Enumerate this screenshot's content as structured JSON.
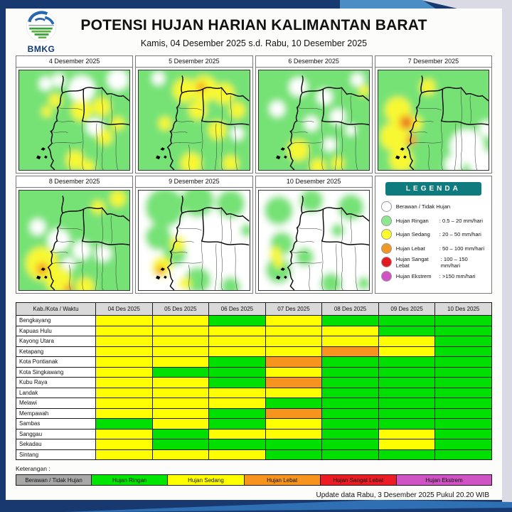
{
  "header": {
    "logo": "BMKG",
    "title": "POTENSI HUJAN HARIAN KALIMANTAN BARAT",
    "subtitle": "Kamis, 04 Desember 2025 s.d. Rabu, 10 Desember 2025"
  },
  "map_panels": [
    {
      "title": "4 Desember 2025"
    },
    {
      "title": "5 Desember 2025"
    },
    {
      "title": "6 Desember 2025"
    },
    {
      "title": "7 Desember 2025"
    },
    {
      "title": "8 Desember 2025"
    },
    {
      "title": "9 Desember 2025"
    },
    {
      "title": "10 Desember 2025"
    }
  ],
  "legend": {
    "title": "LEGENDA",
    "items": [
      {
        "label": "Berawan / Tidak Hujan",
        "range": "",
        "color": "#ffffff"
      },
      {
        "label": "Hujan Ringan",
        "range": ": 0.5 – 20 mm/hari",
        "color": "#8fe78f"
      },
      {
        "label": "Hujan Sedang",
        "range": ": 20 – 50 mm/hari",
        "color": "#fcfc2d"
      },
      {
        "label": "Hujan Lebat",
        "range": ": 50 – 100 mm/hari",
        "color": "#ef9727"
      },
      {
        "label": "Hujan Sangat Lebat",
        "range": ": 100 – 150 mm/hari",
        "color": "#e21b22"
      },
      {
        "label": "Hujan Ekstrem",
        "range": ": >150 mm/hari",
        "color": "#cf53c4"
      }
    ]
  },
  "table": {
    "columns": [
      "Kab./Kota / Waktu",
      "04 Des 2025",
      "05 Des 2025",
      "06 Des 2025",
      "07 Des 2025",
      "08 Des 2025",
      "09 Des 2025",
      "10 Des 2025"
    ],
    "category_colors": {
      "berawan": "#a8a8a8",
      "ringan": "#00e000",
      "sedang": "#ffff00",
      "lebat": "#f7941e",
      "sangat_lebat": "#e21b22",
      "ekstrem": "#cf53c4"
    },
    "rows": [
      {
        "name": "Bengkayang",
        "cells": [
          "sedang",
          "sedang",
          "ringan",
          "sedang",
          "ringan",
          "ringan",
          "ringan"
        ]
      },
      {
        "name": "Kapuas Hulu",
        "cells": [
          "sedang",
          "sedang",
          "sedang",
          "sedang",
          "sedang",
          "ringan",
          "ringan"
        ]
      },
      {
        "name": "Kayong Utara",
        "cells": [
          "sedang",
          "sedang",
          "sedang",
          "sedang",
          "sedang",
          "sedang",
          "ringan"
        ]
      },
      {
        "name": "Ketapang",
        "cells": [
          "sedang",
          "sedang",
          "sedang",
          "sedang",
          "lebat",
          "sedang",
          "ringan"
        ]
      },
      {
        "name": "Kota Pontianak",
        "cells": [
          "sedang",
          "sedang",
          "ringan",
          "lebat",
          "ringan",
          "ringan",
          "ringan"
        ]
      },
      {
        "name": "Kota Singkawang",
        "cells": [
          "sedang",
          "ringan",
          "ringan",
          "sedang",
          "ringan",
          "ringan",
          "ringan"
        ]
      },
      {
        "name": "Kubu Raya",
        "cells": [
          "sedang",
          "sedang",
          "ringan",
          "lebat",
          "ringan",
          "ringan",
          "ringan"
        ]
      },
      {
        "name": "Landak",
        "cells": [
          "sedang",
          "sedang",
          "sedang",
          "sedang",
          "ringan",
          "ringan",
          "ringan"
        ]
      },
      {
        "name": "Melawi",
        "cells": [
          "sedang",
          "sedang",
          "sedang",
          "ringan",
          "ringan",
          "ringan",
          "ringan"
        ]
      },
      {
        "name": "Mempawah",
        "cells": [
          "sedang",
          "sedang",
          "ringan",
          "lebat",
          "ringan",
          "ringan",
          "ringan"
        ]
      },
      {
        "name": "Sambas",
        "cells": [
          "ringan",
          "sedang",
          "ringan",
          "sedang",
          "ringan",
          "ringan",
          "ringan"
        ]
      },
      {
        "name": "Sanggau",
        "cells": [
          "sedang",
          "ringan",
          "sedang",
          "sedang",
          "ringan",
          "sedang",
          "ringan"
        ]
      },
      {
        "name": "Sekadau",
        "cells": [
          "sedang",
          "ringan",
          "ringan",
          "ringan",
          "ringan",
          "sedang",
          "ringan"
        ]
      },
      {
        "name": "Sintang",
        "cells": [
          "sedang",
          "sedang",
          "sedang",
          "ringan",
          "ringan",
          "ringan",
          "ringan"
        ]
      }
    ]
  },
  "footer": {
    "keterangan_label": "Keterangan :",
    "categories": [
      {
        "label": "Berawan / Tidak Hujan",
        "color": "#a8a8a8",
        "width": 16
      },
      {
        "label": "Hujan Ringan",
        "color": "#00e600",
        "width": 16
      },
      {
        "label": "Hujan Sedang",
        "color": "#ffff00",
        "width": 16
      },
      {
        "label": "Hujan Lebat",
        "color": "#f7941e",
        "width": 16
      },
      {
        "label": "Hujan Sangat Lebat",
        "color": "#ed1c24",
        "width": 16
      },
      {
        "label": "Hujan Ekstrem",
        "color": "#cf53c4",
        "width": 20
      }
    ],
    "update_text": "Update data Rabu, 3 Desember 2025 Pukul 20.20 WIB"
  },
  "colors": {
    "navy": "#17396f",
    "ribbon_blue": "#4a8ec5",
    "footer_blue": "#2f6fb4",
    "page_gray": "#d9dae3",
    "teal": "#0e7c7e",
    "map_green": "#76e276",
    "map_yellow": "#f8f832",
    "map_orange": "#f59b28",
    "map_red": "#e34a1f"
  }
}
